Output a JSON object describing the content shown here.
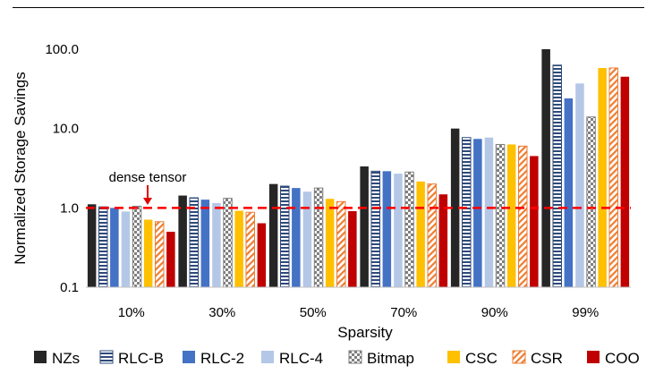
{
  "chart_data": {
    "type": "bar",
    "title": "",
    "xlabel": "Sparsity",
    "ylabel": "Normalized Storage Savings",
    "yscale": "log",
    "ylim": [
      0.1,
      100
    ],
    "yticks": [
      "100.0",
      "10.0",
      "1.0",
      "0.1"
    ],
    "categories": [
      "10%",
      "30%",
      "50%",
      "70%",
      "90%",
      "99%"
    ],
    "series": [
      {
        "name": "NZs",
        "color": "#262626",
        "pattern": "solid",
        "values": [
          1.11,
          1.43,
          2.0,
          3.33,
          10.0,
          100.0
        ]
      },
      {
        "name": "RLC-B",
        "color": "#2f4a7a",
        "pattern": "horizontal-stripes",
        "values": [
          1.03,
          1.34,
          1.88,
          2.9,
          7.7,
          63
        ]
      },
      {
        "name": "RLC-2",
        "color": "#4472c4",
        "pattern": "solid",
        "values": [
          1.0,
          1.27,
          1.78,
          2.9,
          7.4,
          24
        ]
      },
      {
        "name": "RLC-4",
        "color": "#b4c7e7",
        "pattern": "solid",
        "values": [
          0.9,
          1.15,
          1.6,
          2.7,
          7.7,
          37
        ]
      },
      {
        "name": "Bitmap",
        "color": "#7f7f7f",
        "pattern": "checker",
        "values": [
          1.05,
          1.32,
          1.78,
          2.83,
          6.3,
          14
        ]
      },
      {
        "name": "CSC",
        "color": "#ffc000",
        "pattern": "solid",
        "values": [
          0.71,
          0.92,
          1.3,
          2.15,
          6.3,
          58
        ]
      },
      {
        "name": "CSR",
        "color": "#f4b183",
        "pattern": "diagonal-stripes",
        "values": [
          0.67,
          0.88,
          1.2,
          2.0,
          6.0,
          58
        ]
      },
      {
        "name": "COO",
        "color": "#c00000",
        "pattern": "solid",
        "values": [
          0.5,
          0.64,
          0.91,
          1.48,
          4.5,
          45
        ]
      }
    ],
    "reference_line": {
      "value": 1.0,
      "color": "#ff0000",
      "style": "dashed"
    },
    "annotation": {
      "text": "dense tensor",
      "points_to": 1.0
    },
    "legend_position": "bottom",
    "grid": false
  }
}
